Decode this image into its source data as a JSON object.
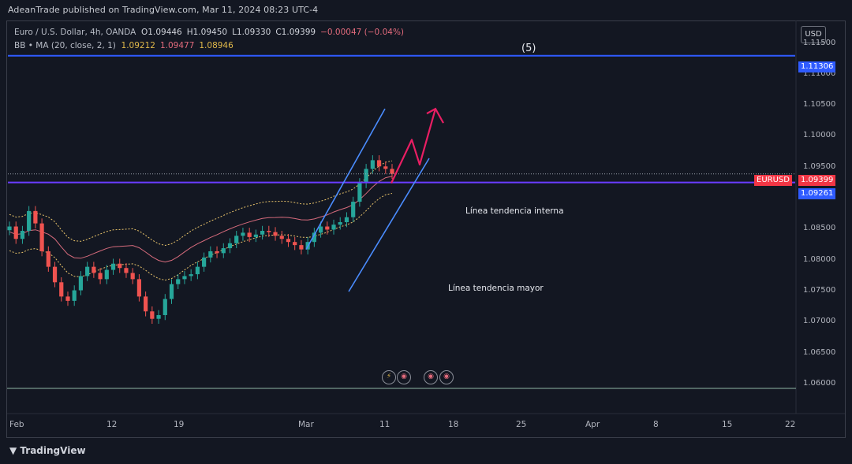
{
  "caption": "AdeanTrade published on TradingView.com, Mar 11, 2024 08:23 UTC-4",
  "legend": {
    "ohlc_title": "Euro / U.S. Dollar, 4h, OANDA",
    "open": "O1.09446",
    "high": "H1.09450",
    "low": "L1.09330",
    "close": "C1.09399",
    "change": "−0.00047 (−0.04%)",
    "bb_title": "BB • MA (20, close, 2, 1)",
    "bb_basis": "1.09212",
    "bb_upper": "1.09477",
    "bb_lower": "1.08946"
  },
  "currency_button": "USD",
  "wave_label": "(5)",
  "annotations": {
    "interna": "Línea tendencia interna",
    "mayor": "Línea tendencia mayor"
  },
  "badges": {
    "resistance_price": "1.11306",
    "symbol": "EURUSD",
    "last_price": "1.09399",
    "support_price": "1.09261"
  },
  "footer": "TradingView",
  "colors": {
    "background": "#131722",
    "resistance_line": "#2f5bff",
    "support_line": "#6a3cff",
    "trendline": "#4a8cff",
    "projection_arrow": "#e91e63",
    "candle_up": "#26a69a",
    "candle_down": "#ef5350",
    "band_basis": "#d66b7c",
    "band_upper": "#e8c36a"
  },
  "chart_data": {
    "type": "candlestick",
    "symbol": "EURUSD",
    "timeframe": "4h",
    "y_ticks": [
      "1.11500",
      "1.11000",
      "1.10500",
      "1.10000",
      "1.09500",
      "1.09000",
      "1.08500",
      "1.08000",
      "1.07500",
      "1.07000",
      "1.06500",
      "1.06000"
    ],
    "x_ticks": [
      "Feb",
      "12",
      "19",
      "Mar",
      "11",
      "18",
      "25",
      "Apr",
      "8",
      "15",
      "22"
    ],
    "ylim": [
      1.0595,
      1.1185
    ],
    "horizontal_levels": [
      1.11306,
      1.09261
    ],
    "last_price": 1.09399,
    "price_path": [
      1.0855,
      1.0835,
      1.0848,
      1.088,
      1.086,
      1.0815,
      1.079,
      1.0765,
      1.0742,
      1.0735,
      1.0752,
      1.0775,
      1.079,
      1.078,
      1.077,
      1.0785,
      1.0795,
      1.0788,
      1.078,
      1.077,
      1.0742,
      1.0718,
      1.0706,
      1.0712,
      1.0738,
      1.0762,
      1.077,
      1.0775,
      1.0778,
      1.079,
      1.0805,
      1.0815,
      1.0812,
      1.082,
      1.0828,
      1.084,
      1.0845,
      1.0838,
      1.0842,
      1.0848,
      1.0846,
      1.084,
      1.0835,
      1.083,
      1.0825,
      1.0818,
      1.083,
      1.0845,
      1.0855,
      1.085,
      1.0858,
      1.0862,
      1.087,
      1.0895,
      1.0925,
      1.0948,
      1.0962,
      1.0952,
      1.0948,
      1.094
    ],
    "bands": {
      "basis_start": 1.0838,
      "basis_end": 1.0922,
      "upper_start": 1.087,
      "upper_end": 1.0948,
      "lower_start": 1.0805,
      "lower_end": 1.0895
    },
    "trendlines": [
      {
        "name": "Línea tendencia interna",
        "from": [
          "Mar",
          1.0818
        ],
        "to": [
          "11+",
          1.1045
        ]
      },
      {
        "name": "Línea tendencia mayor",
        "from": [
          "Mar+",
          1.075
        ],
        "to": [
          "18-",
          1.0965
        ]
      }
    ],
    "projection": [
      1.0925,
      1.0995,
      1.0955,
      1.1045
    ]
  }
}
